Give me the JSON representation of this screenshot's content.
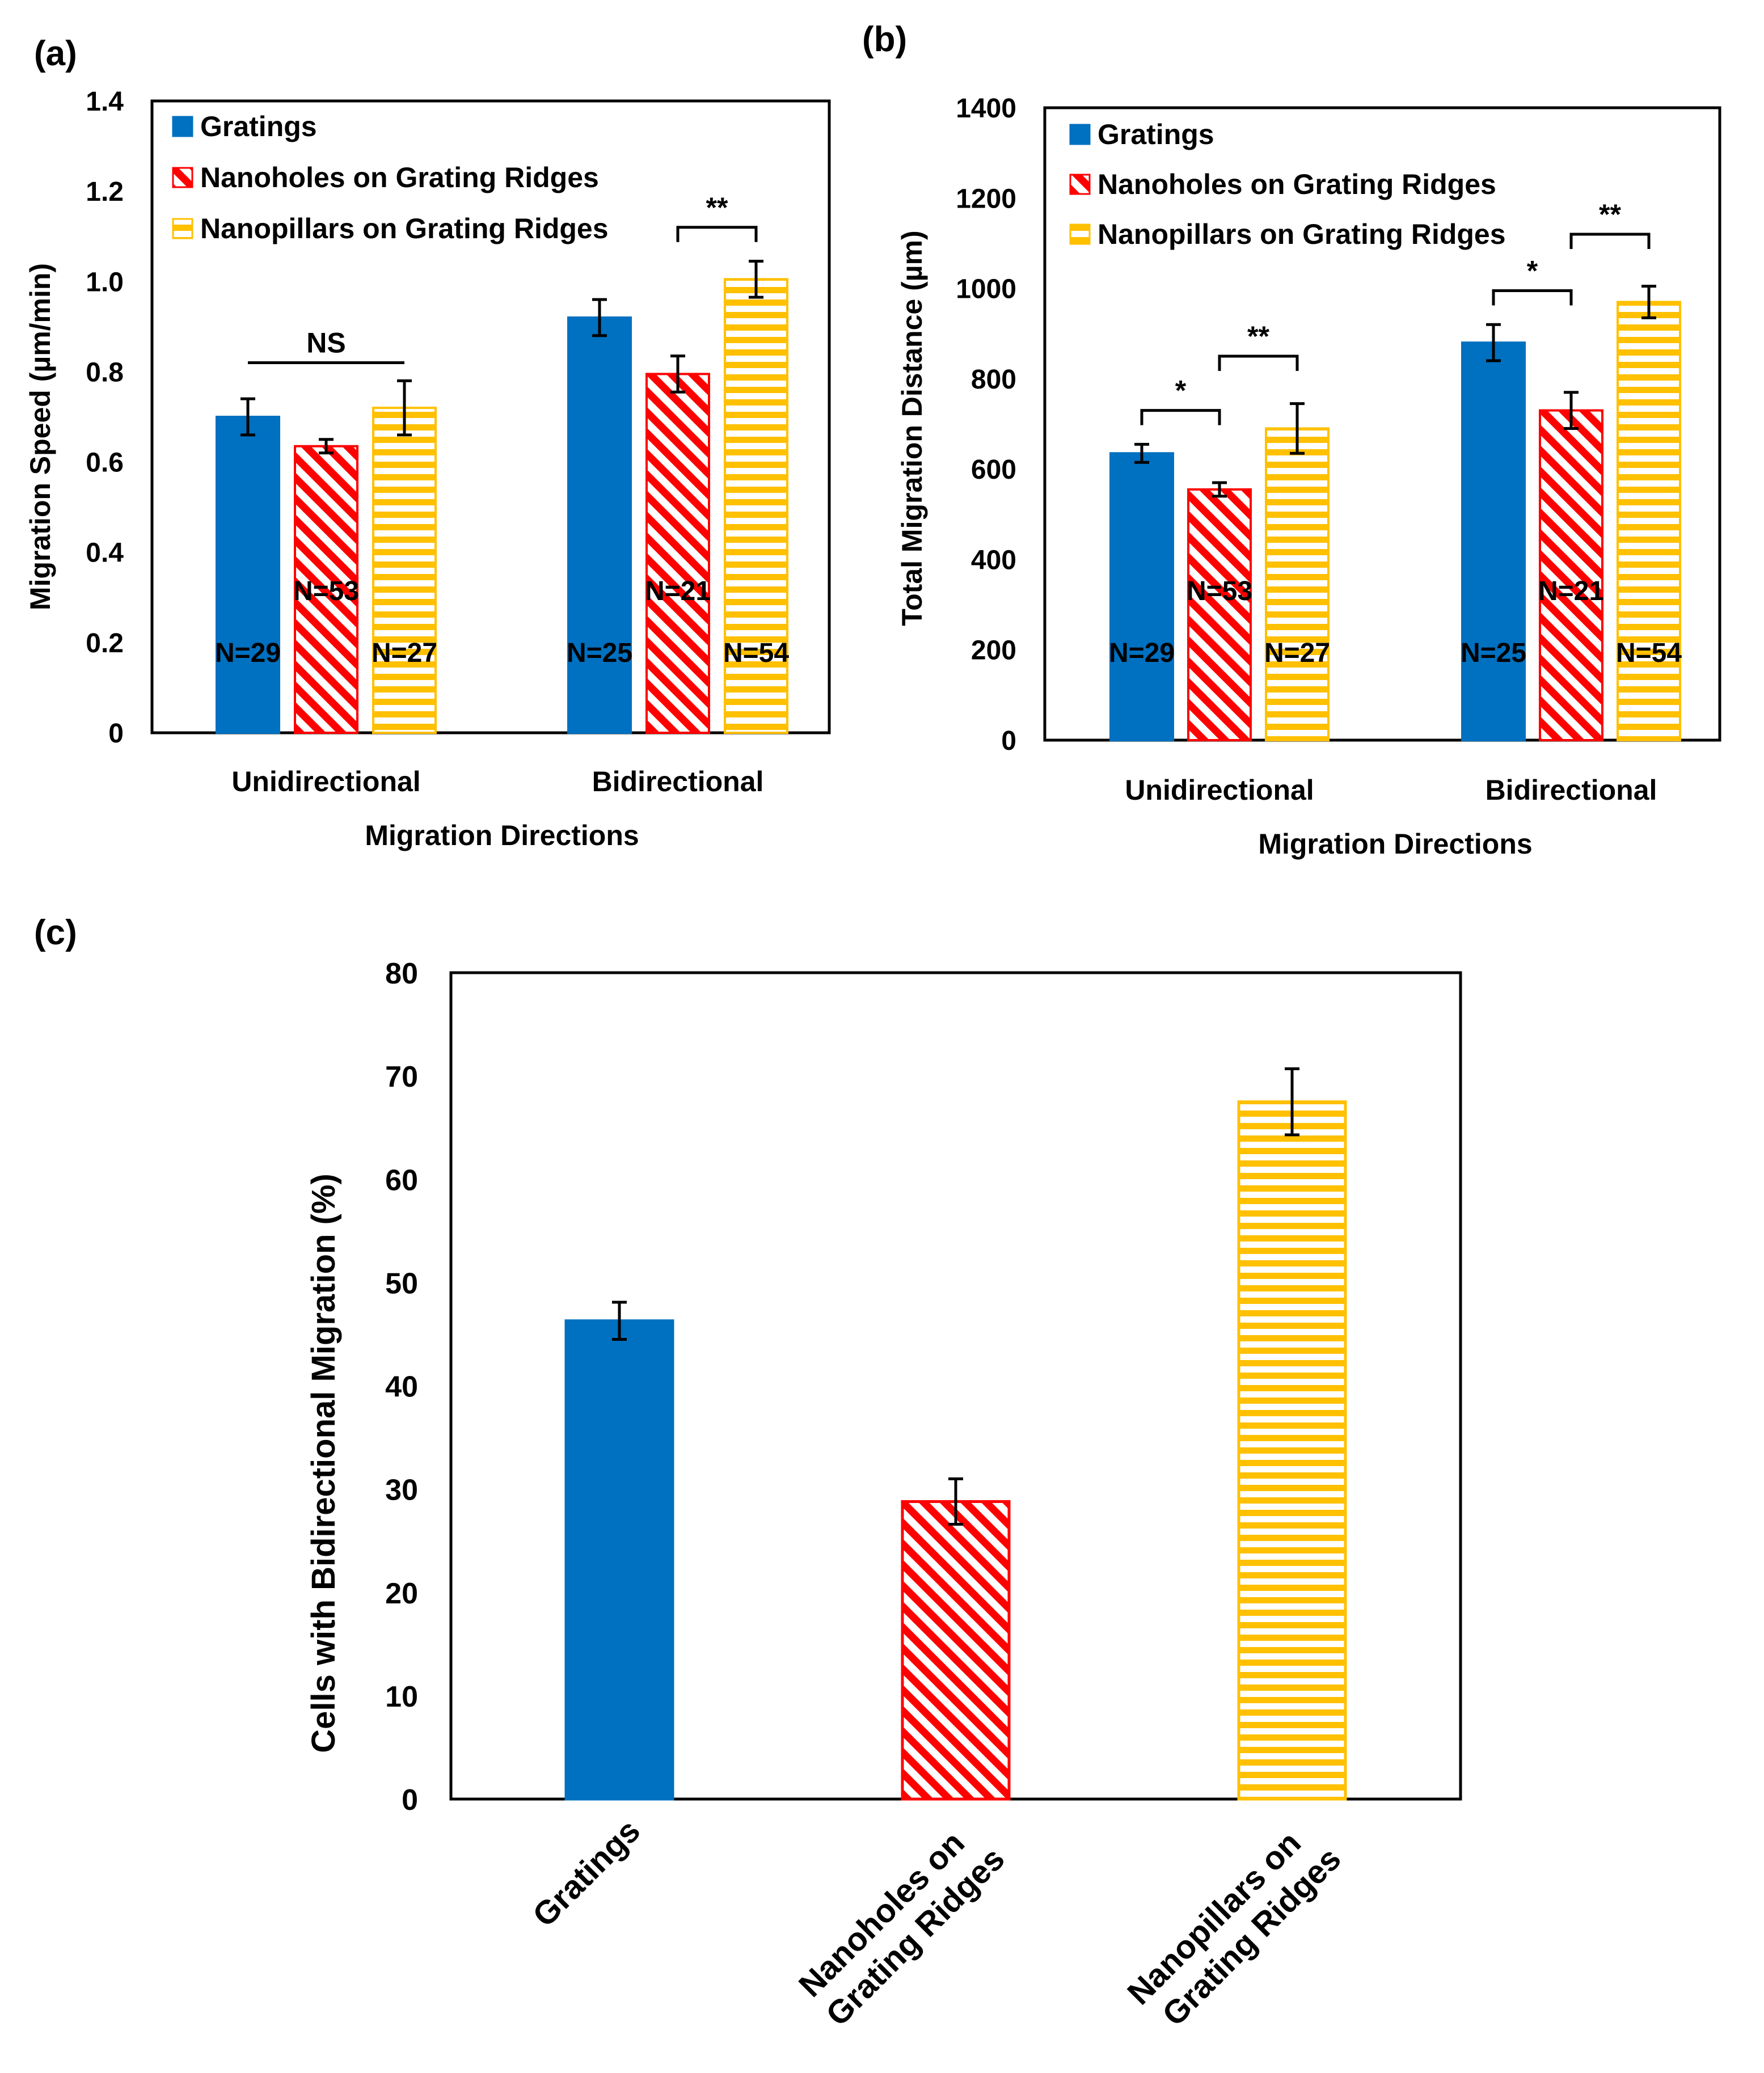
{
  "colors": {
    "gratings": "#0070C0",
    "nanoholes": "#FF0000",
    "nanopillars": "#FFC000",
    "axis": "#000000"
  },
  "series_names": [
    "Gratings",
    "Nanoholes on Grating Ridges",
    "Nanopillars on Grating Ridges"
  ],
  "chart_data": [
    {
      "panel_label": "(a)",
      "type": "bar",
      "title": "",
      "xlabel": "Migration Directions",
      "ylabel": "Migration Speed (µm/min)",
      "ylim": [
        0,
        1.4
      ],
      "yticks": [
        "0",
        "0.2",
        "0.4",
        "0.6",
        "0.8",
        "1.0",
        "1.2",
        "1.4"
      ],
      "categories": [
        "Unidirectional",
        "Bidirectional"
      ],
      "legend": "top-left inside",
      "series": [
        {
          "name": "Gratings",
          "values": [
            0.7,
            0.92
          ],
          "errors": [
            0.04,
            0.04
          ],
          "n_labels": [
            "N=29",
            "N=25"
          ]
        },
        {
          "name": "Nanoholes on Grating Ridges",
          "values": [
            0.635,
            0.795
          ],
          "errors": [
            0.015,
            0.04
          ],
          "n_labels": [
            "N=53",
            "N=21"
          ]
        },
        {
          "name": "Nanopillars on Grating Ridges",
          "values": [
            0.72,
            1.005
          ],
          "errors": [
            0.06,
            0.04
          ],
          "n_labels": [
            "N=27",
            "N=54"
          ]
        }
      ],
      "significance": [
        {
          "category": 0,
          "from_series": 0,
          "to_series": 2,
          "label": "NS",
          "level": 0.82
        },
        {
          "category": 1,
          "from_series": 1,
          "to_series": 2,
          "label": "**",
          "level": 1.12
        }
      ]
    },
    {
      "panel_label": "(b)",
      "type": "bar",
      "title": "",
      "xlabel": "Migration Directions",
      "ylabel": "Total Migration Distance (µm)",
      "ylim": [
        0,
        1400
      ],
      "yticks": [
        "0",
        "200",
        "400",
        "600",
        "800",
        "1000",
        "1200",
        "1400"
      ],
      "categories": [
        "Unidirectional",
        "Bidirectional"
      ],
      "legend": "top-left inside",
      "series": [
        {
          "name": "Gratings",
          "values": [
            635,
            880
          ],
          "errors": [
            20,
            40
          ],
          "n_labels": [
            "N=29",
            "N=25"
          ]
        },
        {
          "name": "Nanoholes on Grating Ridges",
          "values": [
            555,
            730
          ],
          "errors": [
            15,
            40
          ],
          "n_labels": [
            "N=53",
            "N=21"
          ]
        },
        {
          "name": "Nanopillars on Grating Ridges",
          "values": [
            690,
            970
          ],
          "errors": [
            55,
            35
          ],
          "n_labels": [
            "N=27",
            "N=54"
          ]
        }
      ],
      "significance": [
        {
          "category": 0,
          "from_series": 0,
          "to_series": 1,
          "label": "*",
          "level": 730
        },
        {
          "category": 0,
          "from_series": 1,
          "to_series": 2,
          "label": "**",
          "level": 850
        },
        {
          "category": 1,
          "from_series": 0,
          "to_series": 1,
          "label": "*",
          "level": 995
        },
        {
          "category": 1,
          "from_series": 1,
          "to_series": 2,
          "label": "**",
          "level": 1120
        }
      ]
    },
    {
      "panel_label": "(c)",
      "type": "bar",
      "title": "",
      "xlabel": "",
      "ylabel": "Cells with Bidirectional Migration (%)",
      "ylim": [
        0,
        80
      ],
      "yticks": [
        "0",
        "10",
        "20",
        "30",
        "40",
        "50",
        "60",
        "70",
        "80"
      ],
      "categories": [
        [
          "Gratings"
        ],
        [
          "Nanoholes on",
          "Grating Ridges"
        ],
        [
          "Nanopillars on",
          "Grating Ridges"
        ]
      ],
      "values": [
        46.3,
        28.8,
        67.5
      ],
      "errors": [
        1.8,
        2.2,
        3.2
      ]
    }
  ]
}
